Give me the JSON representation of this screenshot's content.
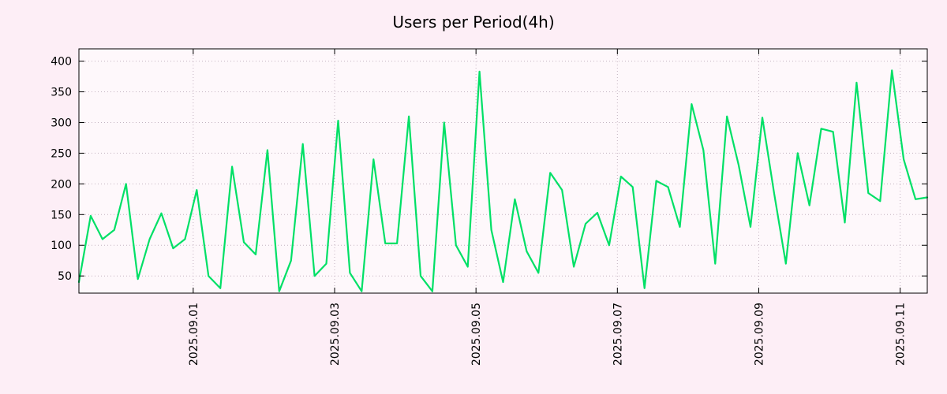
{
  "chart_data": {
    "type": "line",
    "title": "Users per Period(4h)",
    "xlabel": "",
    "ylabel": "",
    "grid": true,
    "legend": "none",
    "page_background": "#fdeef6",
    "plot_background": "#fef8fb",
    "grid_color": "#c4b2c0",
    "border_color": "#000000",
    "ylim": [
      22,
      420
    ],
    "y_ticks": [
      50,
      100,
      150,
      200,
      250,
      300,
      350,
      400
    ],
    "x_tick_labels": [
      "2025.09.01",
      "2025.09.03",
      "2025.09.05",
      "2025.09.07",
      "2025.09.09",
      "2025.09.11"
    ],
    "x_tick_positions": [
      9.7,
      21.7,
      33.7,
      45.7,
      57.7,
      69.7
    ],
    "series": [
      {
        "name": "users",
        "color": "#00e066",
        "values": [
          40,
          148,
          110,
          125,
          200,
          45,
          110,
          152,
          95,
          110,
          190,
          50,
          30,
          228,
          105,
          85,
          255,
          25,
          75,
          265,
          50,
          70,
          303,
          55,
          25,
          240,
          103,
          103,
          310,
          50,
          25,
          300,
          100,
          65,
          383,
          125,
          40,
          175,
          90,
          55,
          218,
          190,
          65,
          135,
          153,
          100,
          212,
          195,
          30,
          205,
          195,
          130,
          330,
          255,
          70,
          310,
          230,
          130,
          308,
          185,
          70,
          250,
          165,
          290,
          285,
          137,
          365,
          185,
          172,
          385,
          240,
          175,
          178
        ]
      }
    ]
  }
}
